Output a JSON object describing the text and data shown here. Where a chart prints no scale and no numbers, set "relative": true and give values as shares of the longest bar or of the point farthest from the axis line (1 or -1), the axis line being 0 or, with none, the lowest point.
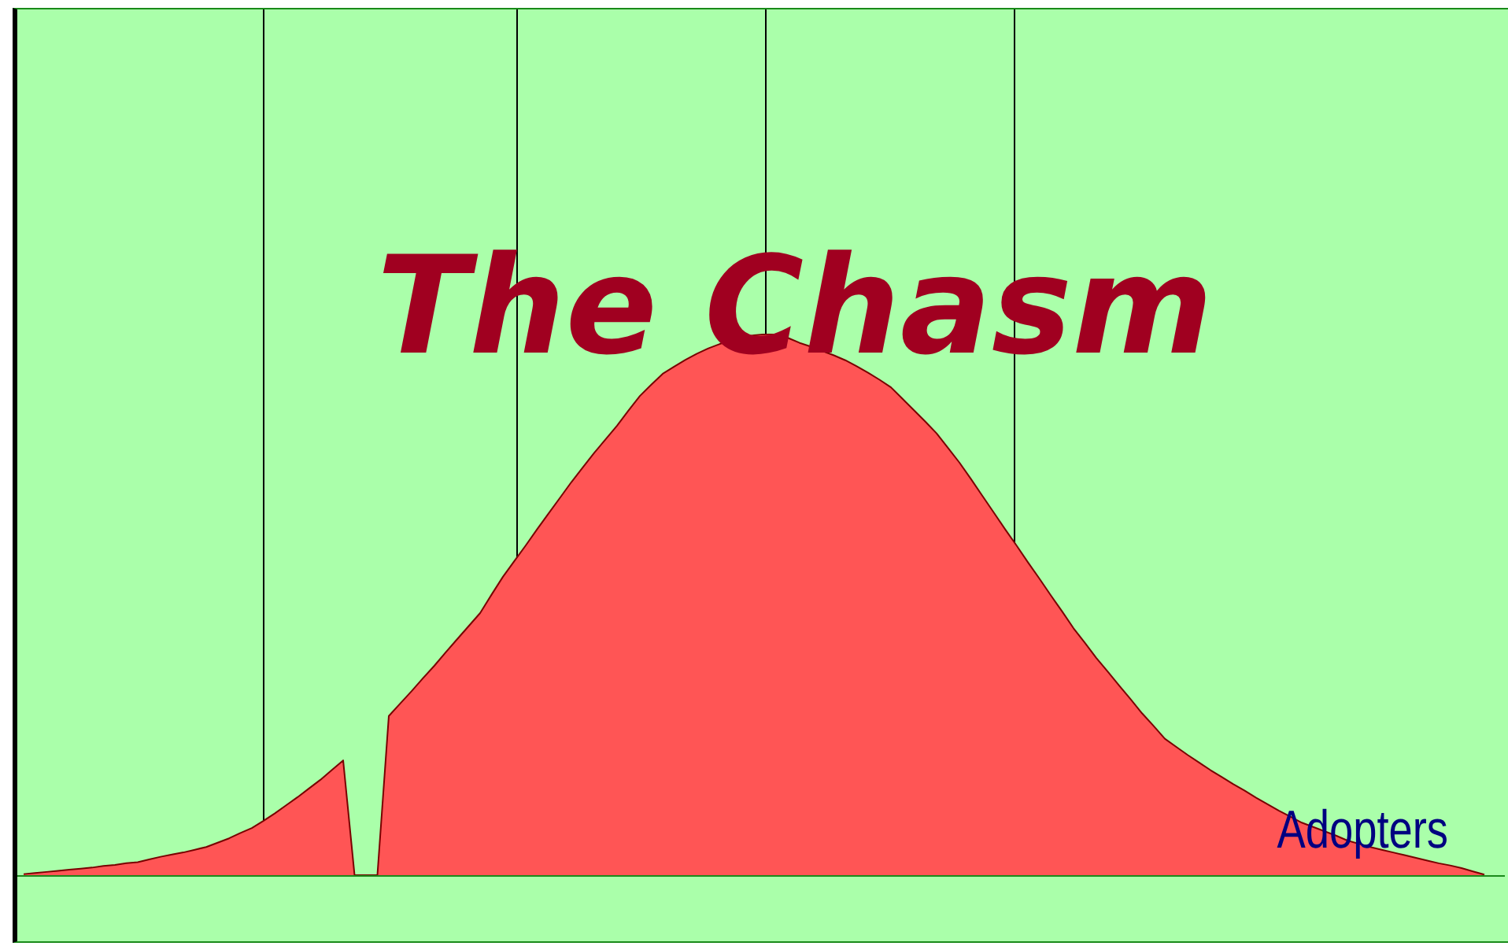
{
  "chart_data": {
    "type": "area",
    "title": "The Chasm",
    "relative": true,
    "legend": false,
    "categories": [
      null,
      null,
      null,
      null,
      null,
      null,
      null,
      null,
      null,
      null,
      null,
      null,
      null,
      null,
      null,
      null,
      null,
      null,
      null,
      null,
      null,
      null,
      null,
      null,
      null,
      null,
      null,
      null,
      null,
      null,
      null,
      null,
      null,
      null,
      null,
      null,
      null,
      null,
      null,
      null,
      null,
      null,
      null,
      null,
      null,
      null,
      null,
      null,
      null,
      null,
      null,
      null,
      null,
      null,
      null,
      null,
      null,
      null,
      null,
      null,
      null,
      null,
      null,
      null,
      null,
      null,
      null,
      null,
      null,
      null,
      null,
      null,
      null,
      null,
      null,
      null,
      null,
      null,
      null,
      null,
      null,
      null,
      null,
      null,
      null,
      null,
      null,
      null,
      null,
      null,
      null,
      null,
      null,
      null,
      null,
      null,
      null,
      null,
      null,
      null,
      null,
      null,
      null,
      null,
      null,
      null,
      null,
      null,
      null,
      null,
      null,
      null,
      null,
      null,
      null,
      null,
      null,
      null,
      null,
      null,
      null,
      null,
      null,
      null,
      null,
      null,
      null,
      null,
      null
    ],
    "series": [
      {
        "color": "#ff5555",
        "values": [
          0.002,
          0.004,
          0.006,
          0.008,
          0.01,
          0.012,
          0.014,
          0.017,
          0.019,
          0.022,
          0.024,
          0.029,
          0.034,
          0.038,
          0.042,
          0.047,
          0.052,
          0.06,
          0.068,
          0.078,
          0.087,
          0.1,
          0.114,
          0.129,
          0.144,
          0.16,
          0.176,
          0.194,
          0.212,
          0,
          0,
          0,
          0.294,
          0.317,
          0.34,
          0.364,
          0.387,
          0.412,
          0.436,
          0.46,
          0.484,
          0.518,
          0.551,
          0.58,
          0.609,
          0.639,
          0.668,
          0.697,
          0.726,
          0.753,
          0.78,
          0.805,
          0.83,
          0.858,
          0.885,
          0.906,
          0.926,
          0.939,
          0.952,
          0.963,
          0.973,
          0.981,
          0.988,
          0.993,
          0.997,
          0.999,
          1,
          0.992,
          0.983,
          0.976,
          0.968,
          0.96,
          0.951,
          0.94,
          0.928,
          0.915,
          0.901,
          0.88,
          0.859,
          0.838,
          0.816,
          0.789,
          0.762,
          0.732,
          0.701,
          0.67,
          0.639,
          0.609,
          0.578,
          0.548,
          0.517,
          0.487,
          0.456,
          0.429,
          0.401,
          0.376,
          0.35,
          0.325,
          0.299,
          0.276,
          0.252,
          0.237,
          0.222,
          0.208,
          0.194,
          0.181,
          0.168,
          0.156,
          0.143,
          0.131,
          0.119,
          0.108,
          0.097,
          0.089,
          0.081,
          0.073,
          0.064,
          0.058,
          0.052,
          0.047,
          0.042,
          0.037,
          0.032,
          0.027,
          0.022,
          0.018,
          0.013,
          0.007,
          0.001
        ]
      }
    ],
    "annotations": [
      "Adopters"
    ]
  }
}
